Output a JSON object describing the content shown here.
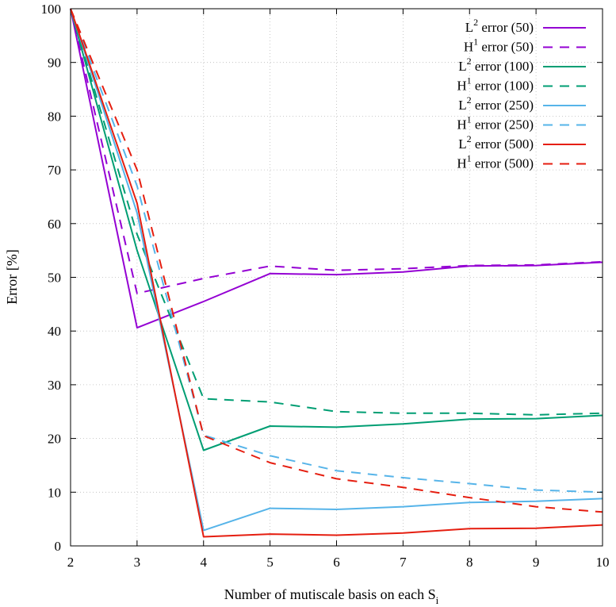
{
  "chart_data": {
    "type": "line",
    "title": "",
    "xlabel": "Number of mutiscale basis on each S",
    "xlabel_subscript": "i",
    "ylabel": "Error [%]",
    "xlim": [
      2,
      10
    ],
    "ylim": [
      0,
      100
    ],
    "xticks": [
      "2",
      "3",
      "4",
      "5",
      "6",
      "7",
      "8",
      "9",
      "10"
    ],
    "yticks": [
      "0",
      "10",
      "20",
      "30",
      "40",
      "50",
      "60",
      "70",
      "80",
      "90",
      "100"
    ],
    "grid": true,
    "legend_position": "top-right",
    "x": [
      2,
      3,
      4,
      5,
      6,
      7,
      8,
      9,
      10
    ],
    "series": [
      {
        "name": "L² error (50)",
        "legend_base": "L",
        "legend_sup": "2",
        "legend_rest": " error (50)",
        "color": "#9400d3",
        "dash": "solid",
        "values": [
          100,
          40.6,
          45.5,
          50.7,
          50.5,
          51.0,
          52.1,
          52.2,
          52.8
        ]
      },
      {
        "name": "H¹ error (50)",
        "legend_base": "H",
        "legend_sup": "1",
        "legend_rest": " error (50)",
        "color": "#9400d3",
        "dash": "dashed",
        "values": [
          100,
          47.0,
          49.8,
          52.1,
          51.3,
          51.6,
          52.2,
          52.3,
          52.9
        ]
      },
      {
        "name": "L² error (100)",
        "legend_base": "L",
        "legend_sup": "2",
        "legend_rest": " error (100)",
        "color": "#009e73",
        "dash": "solid",
        "values": [
          100,
          55.0,
          17.8,
          22.3,
          22.1,
          22.7,
          23.6,
          23.7,
          24.3
        ]
      },
      {
        "name": "H¹ error (100)",
        "legend_base": "H",
        "legend_sup": "1",
        "legend_rest": " error (100)",
        "color": "#009e73",
        "dash": "dashed",
        "values": [
          100,
          58.0,
          27.4,
          26.8,
          25.0,
          24.7,
          24.7,
          24.4,
          24.7
        ]
      },
      {
        "name": "L² error (250)",
        "legend_base": "L",
        "legend_sup": "2",
        "legend_rest": " error (250)",
        "color": "#56b4e9",
        "dash": "solid",
        "values": [
          100,
          62.0,
          2.9,
          7.0,
          6.8,
          7.3,
          8.1,
          8.3,
          8.8
        ]
      },
      {
        "name": "H¹ error (250)",
        "legend_base": "H",
        "legend_sup": "1",
        "legend_rest": " error (250)",
        "color": "#56b4e9",
        "dash": "dashed",
        "values": [
          100,
          67.0,
          20.6,
          16.8,
          14.0,
          12.7,
          11.6,
          10.4,
          10.0
        ]
      },
      {
        "name": "L² error (500)",
        "legend_base": "L",
        "legend_sup": "2",
        "legend_rest": " error (500)",
        "color": "#e51e10",
        "dash": "solid",
        "values": [
          100,
          63.8,
          1.7,
          2.2,
          2.0,
          2.4,
          3.2,
          3.3,
          3.9
        ]
      },
      {
        "name": "H¹ error (500)",
        "legend_base": "H",
        "legend_sup": "1",
        "legend_rest": " error (500)",
        "color": "#e51e10",
        "dash": "dashed",
        "values": [
          100,
          70.0,
          20.5,
          15.5,
          12.5,
          10.9,
          9.0,
          7.3,
          6.3
        ]
      }
    ]
  }
}
